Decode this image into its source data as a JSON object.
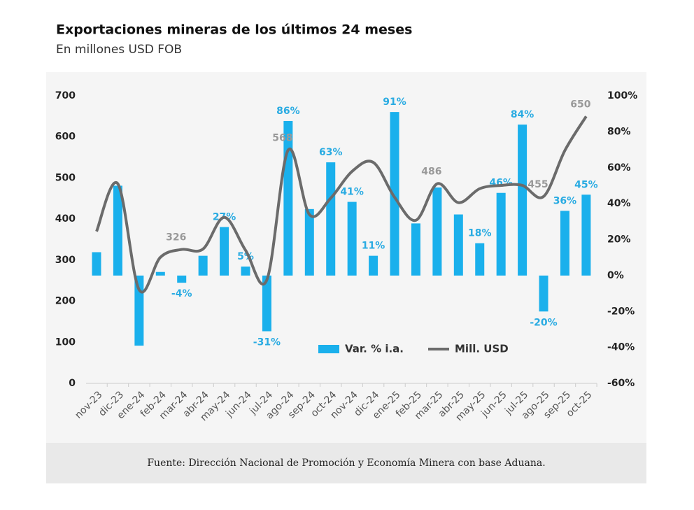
{
  "chart_data": {
    "type": "bar_line",
    "title": "Exportaciones mineras de los últimos 24 meses",
    "subtitle": "En millones USD FOB",
    "source": "Fuente: Dirección Nacional de Promoción y Economía Minera con base Aduana.",
    "categories": [
      "nov-23",
      "dic-23",
      "ene-24",
      "feb-24",
      "mar-24",
      "abr-24",
      "may-24",
      "jun-24",
      "jul-24",
      "ago-24",
      "sep-24",
      "oct-24",
      "nov-24",
      "dic-24",
      "ene-25",
      "feb-25",
      "mar-25",
      "abr-25",
      "may-25",
      "jun-25",
      "jul-25",
      "ago-25",
      "sep-25",
      "oct-25"
    ],
    "ylim": [
      0,
      700
    ],
    "yticks": [
      0,
      100,
      200,
      300,
      400,
      500,
      600,
      700
    ],
    "y2lim": [
      -60,
      100
    ],
    "y2ticks": [
      {
        "value": -60,
        "label": "-60%"
      },
      {
        "value": -40,
        "label": "-40%"
      },
      {
        "value": -20,
        "label": "-20%"
      },
      {
        "value": 0,
        "label": "0%"
      },
      {
        "value": 20,
        "label": "20%"
      },
      {
        "value": 40,
        "label": "40%"
      },
      {
        "value": 60,
        "label": "60%"
      },
      {
        "value": 80,
        "label": "80%"
      },
      {
        "value": 100,
        "label": "100%"
      }
    ],
    "series": [
      {
        "name": "Var. % i.a.",
        "type": "bar",
        "axis": "y2",
        "color": "#1ab0ec",
        "values": [
          13,
          50,
          -39,
          2,
          -4,
          11,
          27,
          5,
          -31,
          86,
          37,
          63,
          41,
          11,
          91,
          29,
          49,
          34,
          18,
          46,
          84,
          -20,
          36,
          45
        ],
        "value_labels": [
          null,
          null,
          null,
          null,
          "-4%",
          null,
          "27%",
          "5%",
          "-31%",
          "86%",
          null,
          "63%",
          "41%",
          "11%",
          "91%",
          null,
          null,
          null,
          "18%",
          "46%",
          "84%",
          "-20%",
          "36%",
          "45%"
        ]
      },
      {
        "name": "Mill. USD",
        "type": "line",
        "color": "#6b6b6b",
        "values": [
          370,
          486,
          228,
          307,
          326,
          327,
          404,
          324,
          252,
          568,
          411,
          451,
          516,
          538,
          453,
          397,
          486,
          440,
          474,
          482,
          482,
          455,
          567,
          650
        ],
        "value_labels": [
          null,
          null,
          null,
          null,
          "326",
          null,
          null,
          null,
          null,
          "568",
          null,
          null,
          null,
          null,
          null,
          null,
          "486",
          null,
          null,
          null,
          null,
          "455",
          null,
          "650"
        ]
      }
    ]
  }
}
